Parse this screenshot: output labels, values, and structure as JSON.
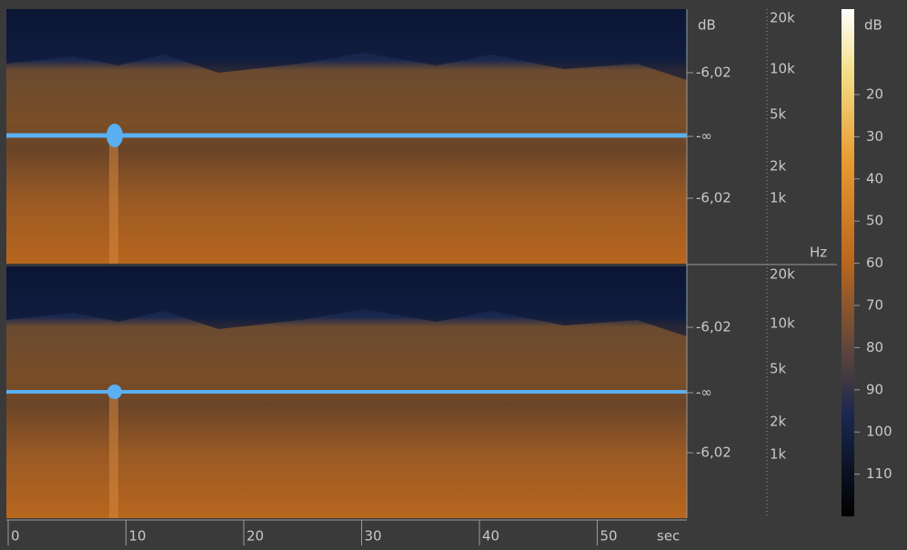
{
  "amplitude_scale": {
    "unit": "dB",
    "channels": [
      [
        "-6,02",
        "-∞",
        "-6,02"
      ],
      [
        "-6,02",
        "-∞",
        "-6,02"
      ]
    ]
  },
  "frequency_scale": {
    "unit": "Hz",
    "channels": [
      [
        "20k",
        "10k",
        "5k",
        "2k",
        "1k"
      ],
      [
        "20k",
        "10k",
        "5k",
        "2k",
        "1k"
      ]
    ]
  },
  "color_scale": {
    "unit": "dB",
    "ticks": [
      20,
      30,
      40,
      50,
      60,
      70,
      80,
      90,
      100,
      110
    ]
  },
  "time_axis": {
    "ticks": [
      0,
      10,
      20,
      30,
      40,
      50
    ],
    "unit": "sec"
  }
}
